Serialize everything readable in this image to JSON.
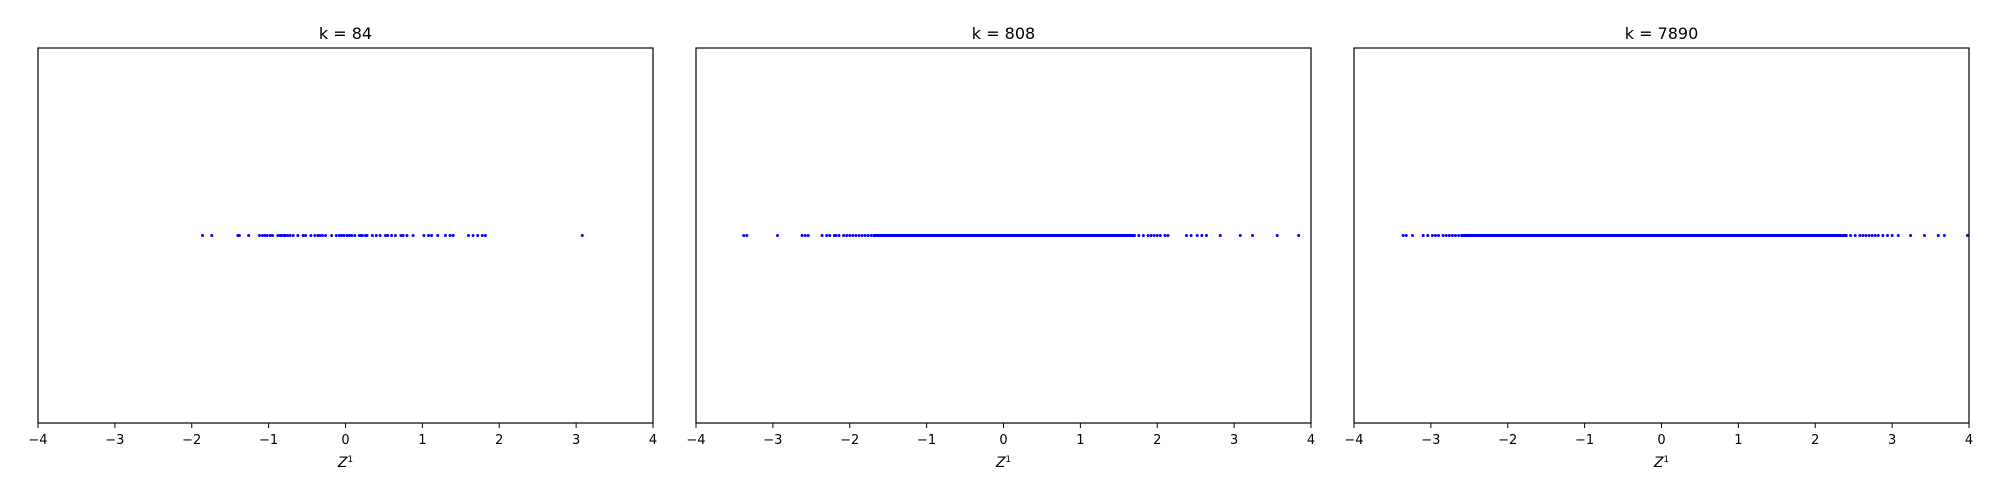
{
  "marker_color": "#0000ff",
  "chart_data": [
    {
      "type": "scatter",
      "title": "k = 84",
      "xlabel": "Z",
      "xlabel_sup": "1",
      "xlim": [
        -4,
        4
      ],
      "xticks": [
        -4,
        -3,
        -2,
        -1,
        0,
        1,
        2,
        3,
        4
      ],
      "tick_labels": [
        "−4",
        "−3",
        "−2",
        "−1",
        "0",
        "1",
        "2",
        "3",
        "4"
      ],
      "y_constant": 0,
      "grid": false,
      "y_ticks_visible": false,
      "x": [
        -1.86,
        -1.74,
        -1.4,
        -1.38,
        -1.26,
        -1.12,
        -1.08,
        -1.05,
        -1.02,
        -0.98,
        -0.95,
        -0.88,
        -0.85,
        -0.83,
        -0.8,
        -0.78,
        -0.75,
        -0.72,
        -0.68,
        -0.62,
        -0.55,
        -0.52,
        -0.45,
        -0.4,
        -0.36,
        -0.33,
        -0.3,
        -0.26,
        -0.18,
        -0.12,
        -0.08,
        -0.05,
        -0.02,
        0.02,
        0.05,
        0.08,
        0.12,
        0.18,
        0.2,
        0.22,
        0.26,
        0.28,
        0.35,
        0.4,
        0.45,
        0.52,
        0.55,
        0.6,
        0.65,
        0.72,
        0.75,
        0.8,
        0.88,
        1.02,
        1.08,
        1.12,
        1.2,
        1.3,
        1.36,
        1.4,
        1.6,
        1.66,
        1.72,
        1.78,
        1.82,
        3.08
      ]
    },
    {
      "type": "scatter",
      "title": "k = 808",
      "xlabel": "Z",
      "xlabel_sup": "1",
      "xlim": [
        -4,
        4
      ],
      "xticks": [
        -4,
        -3,
        -2,
        -1,
        0,
        1,
        2,
        3,
        4
      ],
      "tick_labels": [
        "−4",
        "−3",
        "−2",
        "−1",
        "0",
        "1",
        "2",
        "3",
        "4"
      ],
      "y_constant": 0,
      "grid": false,
      "y_ticks_visible": false,
      "x": [
        -3.38,
        -3.34,
        -2.94,
        -2.62,
        -2.58,
        -2.54,
        -2.36,
        -2.3,
        -2.26,
        -2.2,
        -2.18,
        -2.14,
        -2.08,
        -2.04,
        -2.0,
        -1.96,
        -1.92,
        -1.88,
        -1.84,
        -1.8,
        -1.76,
        -1.72,
        -1.68,
        -1.6,
        -1.5,
        -1.4,
        -1.3,
        -1.2,
        -1.1,
        -1.0,
        -0.9,
        -0.8,
        -0.7,
        -0.6,
        -0.5,
        -0.4,
        -0.3,
        -0.2,
        -0.1,
        0.0,
        0.1,
        0.2,
        0.3,
        0.4,
        0.5,
        0.6,
        0.7,
        0.8,
        0.9,
        1.0,
        1.1,
        1.2,
        1.3,
        1.4,
        1.5,
        1.6,
        1.7,
        1.76,
        1.82,
        1.88,
        1.92,
        1.96,
        2.0,
        2.04,
        2.1,
        2.14,
        2.38,
        2.44,
        2.52,
        2.58,
        2.64,
        2.82,
        3.08,
        3.24,
        3.56,
        3.84
      ]
    },
    {
      "type": "scatter",
      "title": "k = 7890",
      "xlabel": "Z",
      "xlabel_sup": "1",
      "xlim": [
        -4,
        4
      ],
      "xticks": [
        -4,
        -3,
        -2,
        -1,
        0,
        1,
        2,
        3,
        4
      ],
      "tick_labels": [
        "−4",
        "−3",
        "−2",
        "−1",
        "0",
        "1",
        "2",
        "3",
        "4"
      ],
      "y_constant": 0,
      "grid": false,
      "y_ticks_visible": false,
      "x": [
        -3.36,
        -3.32,
        -3.24,
        -3.1,
        -3.04,
        -2.98,
        -2.94,
        -2.9,
        -2.84,
        -2.8,
        -2.76,
        -2.72,
        -2.68,
        -2.64,
        -2.6,
        -2.5,
        -2.4,
        -2.3,
        -2.2,
        -2.1,
        -2.0,
        -1.9,
        -1.8,
        -1.7,
        -1.6,
        -1.5,
        -1.4,
        -1.3,
        -1.2,
        -1.1,
        -1.0,
        -0.9,
        -0.8,
        -0.7,
        -0.6,
        -0.5,
        -0.4,
        -0.3,
        -0.2,
        -0.1,
        0.0,
        0.1,
        0.2,
        0.3,
        0.4,
        0.5,
        0.6,
        0.7,
        0.8,
        0.9,
        1.0,
        1.1,
        1.2,
        1.3,
        1.4,
        1.5,
        1.6,
        1.7,
        1.8,
        1.9,
        2.0,
        2.1,
        2.2,
        2.3,
        2.4,
        2.46,
        2.52,
        2.58,
        2.62,
        2.66,
        2.7,
        2.74,
        2.78,
        2.82,
        2.88,
        2.94,
        3.0,
        3.08,
        3.24,
        3.42,
        3.6,
        3.68,
        3.98
      ]
    }
  ]
}
